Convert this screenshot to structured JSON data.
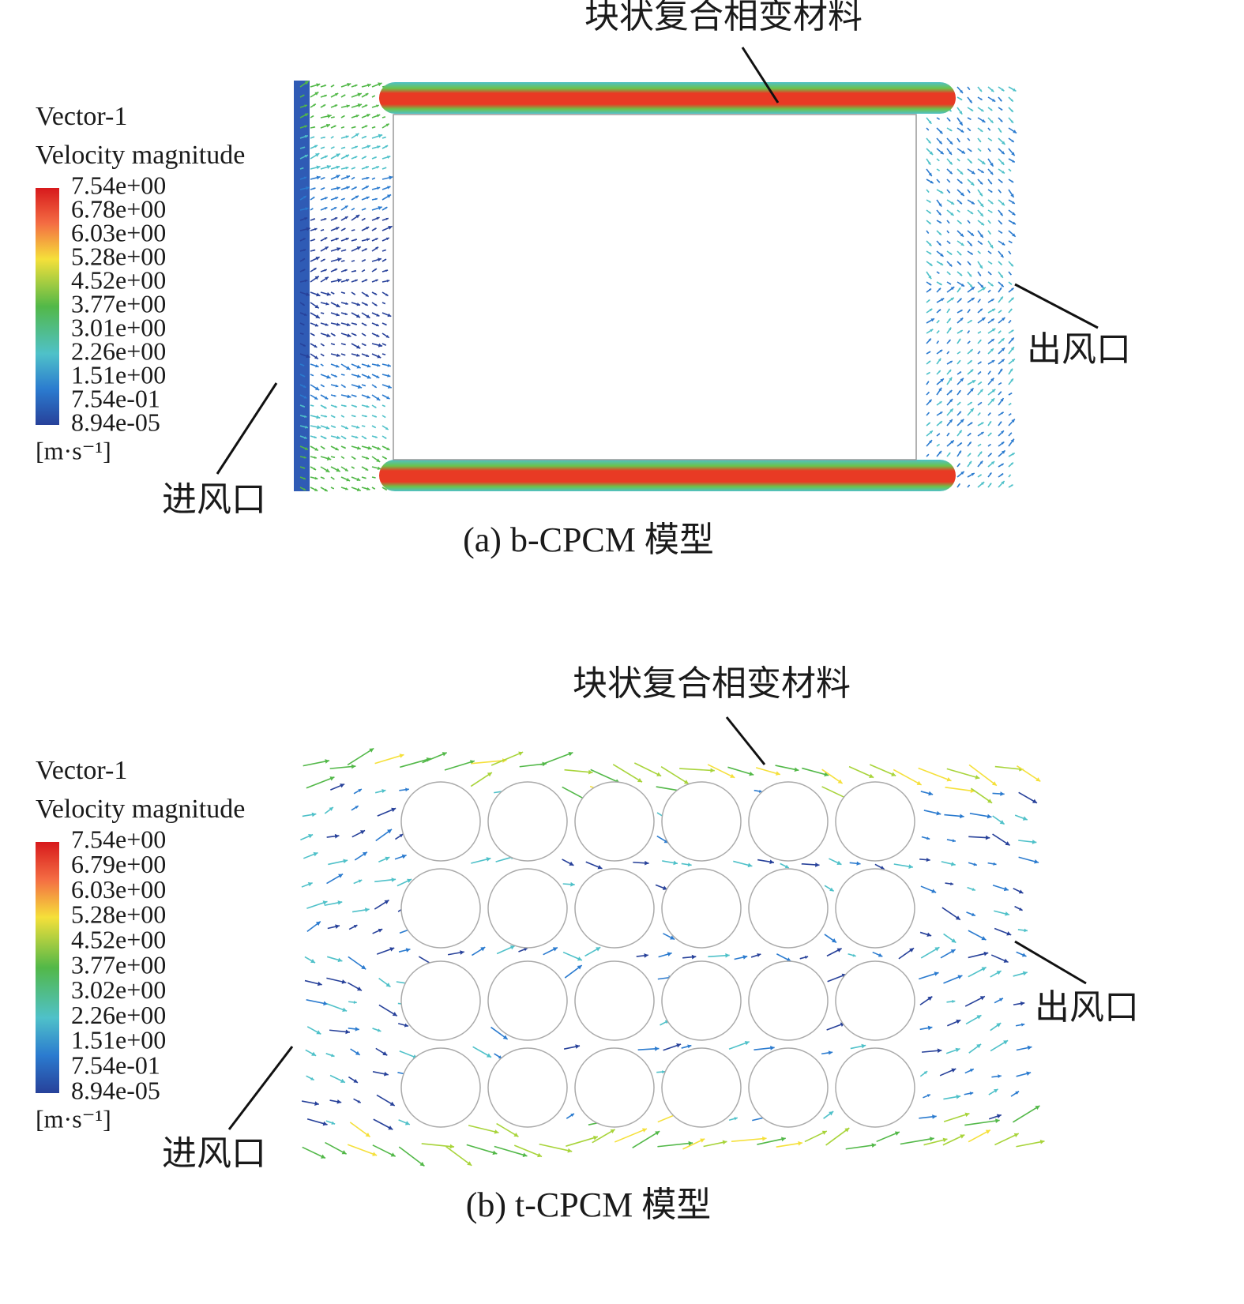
{
  "panels": [
    {
      "legend": {
        "title": "Vector-1",
        "subtitle": "Velocity magnitude",
        "ticks": [
          "7.54e+00",
          "6.78e+00",
          "6.03e+00",
          "5.28e+00",
          "4.52e+00",
          "3.77e+00",
          "3.01e+00",
          "2.26e+00",
          "1.51e+00",
          "7.54e-01",
          "8.94e-05"
        ],
        "unit": "[m·s⁻¹]"
      },
      "annotations": {
        "material": "块状复合相变材料",
        "outlet": "出风口",
        "inlet": "进风口"
      },
      "caption": "(a) b-CPCM 模型"
    },
    {
      "legend": {
        "title": "Vector-1",
        "subtitle": "Velocity magnitude",
        "ticks": [
          "7.54e+00",
          "6.79e+00",
          "6.03e+00",
          "5.28e+00",
          "4.52e+00",
          "3.77e+00",
          "3.02e+00",
          "2.26e+00",
          "1.51e+00",
          "7.54e-01",
          "8.94e-05"
        ],
        "unit": "[m·s⁻¹]"
      },
      "annotations": {
        "material": "块状复合相变材料",
        "outlet": "出风口",
        "inlet": "进风口"
      },
      "caption": "(b) t-CPCM 模型"
    }
  ]
}
